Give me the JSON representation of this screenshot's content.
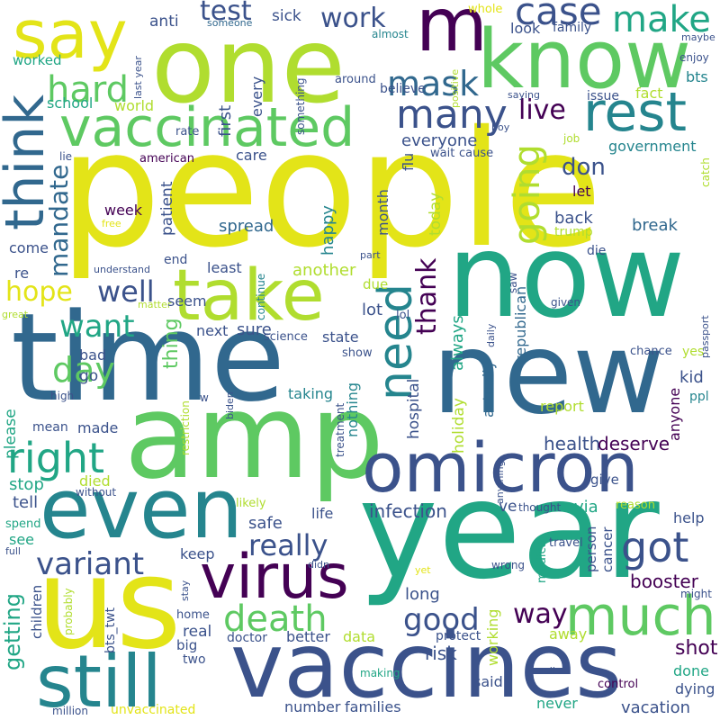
{
  "palette": {
    "yellow": "#e3e418",
    "lime": "#b0dd2f",
    "green": "#5ec962",
    "teal": "#21a685",
    "cyan": "#25858e",
    "blue": "#31688e",
    "indigo": "#3b528b",
    "purple": "#440154",
    "background": "#ffffff"
  },
  "words": {
    "people": "people",
    "now": "now",
    "time": "time",
    "year": "year",
    "new": "new",
    "amp": "amp",
    "one": "one",
    "us": "us",
    "vaccines": "vaccines",
    "even": "even",
    "omicron": "omicron",
    "know": "know",
    "say": "say",
    "m": "m",
    "vaccinated": "vaccinated",
    "take": "take",
    "still": "still",
    "virus": "virus",
    "rest": "rest",
    "think": "think",
    "much": "much",
    "need": "need",
    "case": "case",
    "make": "make",
    "right": "right",
    "got": "got",
    "death": "death",
    "hard": "hard",
    "mask": "mask",
    "many": "many",
    "really": "really",
    "variant": "variant",
    "well": "well",
    "going": "going",
    "good": "good",
    "day": "day",
    "want": "want",
    "hope": "hope",
    "mandate": "mandate",
    "live": "live",
    "work": "work",
    "test": "test",
    "way": "way",
    "thank": "thank",
    "getting": "getting",
    "shot": "shot",
    "booster": "booster",
    "everyone": "everyone",
    "don": "don",
    "infection": "infection",
    "health": "health",
    "deserve": "deserve",
    "sick": "sick",
    "anti": "anti",
    "someone": "someone",
    "whole": "whole",
    "look": "look",
    "family": "family",
    "maybe": "maybe",
    "enjoy": "enjoy",
    "bts": "bts",
    "fact": "fact",
    "issue": "issue",
    "saying": "saying",
    "believe": "believe",
    "around": "around",
    "almost": "almost",
    "positive": "positive",
    "school": "school",
    "world": "world",
    "worked": "worked",
    "last_year": "last year",
    "something": "something",
    "every": "every",
    "first": "first",
    "rate": "rate",
    "boy": "boy",
    "cause": "cause",
    "wait": "wait",
    "flu": "flu",
    "job": "job",
    "government": "government",
    "catch": "catch",
    "lie": "lie",
    "american": "american",
    "care": "care",
    "week": "week",
    "free": "free",
    "patient": "patient",
    "spread": "spread",
    "month": "month",
    "today": "today",
    "let": "let",
    "back": "back",
    "trump": "trump",
    "break": "break",
    "come": "come",
    "happy": "happy",
    "die": "die",
    "re": "re",
    "understand": "understand",
    "end": "end",
    "least": "least",
    "continue": "continue",
    "part": "part",
    "saw": "saw",
    "another": "another",
    "matter": "matter",
    "seem": "seem",
    "due": "due",
    "given": "given",
    "great": "great",
    "lot": "lot",
    "lol": "lol",
    "republican": "republican",
    "next": "next",
    "sure": "sure",
    "science": "science",
    "state": "state",
    "daily": "daily",
    "passport": "passport",
    "always": "always",
    "chance": "chance",
    "yes": "yes",
    "thing": "thing",
    "bad": "bad",
    "show": "show",
    "actually": "actually",
    "kid": "kid",
    "go": "go",
    "hospital": "hospital",
    "restriction": "restriction",
    "taking": "taking",
    "high": "high",
    "w": "w",
    "biden": "biden",
    "nothing": "nothing",
    "ppl": "ppl",
    "please": "please",
    "report": "report",
    "anyone": "anyone",
    "mean": "mean",
    "made": "made",
    "holiday": "holiday",
    "treatment": "treatment",
    "anything": "anything",
    "died": "died",
    "stop": "stop",
    "give": "give",
    "tell": "tell",
    "without": "without",
    "ve": "ve",
    "thought": "thought",
    "via": "via",
    "reason": "reason",
    "likely": "likely",
    "safe": "safe",
    "life": "life",
    "spend": "spend",
    "help": "help",
    "see": "see",
    "keep": "keep",
    "travel": "travel",
    "person": "person",
    "cancer": "cancer",
    "full": "full",
    "didn": "didn",
    "medical": "medical",
    "wrong": "wrong",
    "yet": "yet",
    "long": "long",
    "children": "children",
    "probably": "probably",
    "stay": "stay",
    "might": "might",
    "bts_twt": "bts_twt",
    "home": "home",
    "working": "working",
    "away": "away",
    "real": "real",
    "doctor": "doctor",
    "better": "better",
    "data": "data",
    "protect": "protect",
    "big": "big",
    "risk": "risk",
    "done": "done",
    "two": "two",
    "making": "making",
    "dying": "dying",
    "said": "said",
    "control": "control",
    "call": "call",
    "million": "million",
    "unvaccinated": "unvaccinated",
    "number": "number",
    "families": "families",
    "never": "never",
    "vacation": "vacation"
  }
}
